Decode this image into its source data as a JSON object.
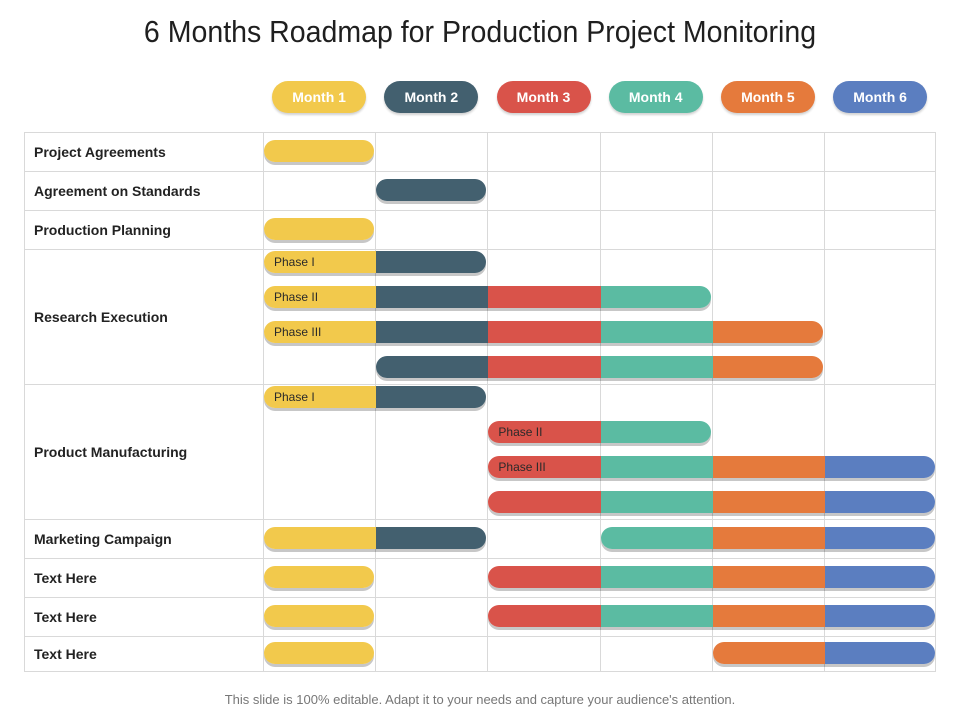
{
  "title": "6 Months Roadmap for Production Project Monitoring",
  "footer": "This slide is 100% editable. Adapt it to your needs and capture your audience's attention.",
  "colors": {
    "m1": "#f2c94c",
    "m2": "#43606f",
    "m3": "#d9534a",
    "m4": "#5bbba2",
    "m5": "#e57a3c",
    "m6": "#5b7ec0"
  },
  "months": [
    {
      "label": "Month 1",
      "color": "#f2c94c"
    },
    {
      "label": "Month 2",
      "color": "#43606f"
    },
    {
      "label": "Month 3",
      "color": "#d9534a"
    },
    {
      "label": "Month 4",
      "color": "#5bbba2"
    },
    {
      "label": "Month 5",
      "color": "#e57a3c"
    },
    {
      "label": "Month 6",
      "color": "#5b7ec0"
    }
  ],
  "rows": [
    {
      "label": "Project Agreements",
      "bars": [
        {
          "start": 1,
          "end": 1,
          "phase": ""
        }
      ]
    },
    {
      "label": "Agreement on Standards",
      "bars": [
        {
          "start": 2,
          "end": 2,
          "phase": ""
        }
      ]
    },
    {
      "label": "Production Planning",
      "bars": [
        {
          "start": 1,
          "end": 1,
          "phase": ""
        }
      ]
    },
    {
      "label": "Research Execution",
      "bars": [
        {
          "start": 1,
          "end": 2,
          "phase": "Phase I"
        },
        {
          "start": 1,
          "end": 4,
          "phase": "Phase II"
        },
        {
          "start": 1,
          "end": 5,
          "phase": "Phase III"
        },
        {
          "start": 2,
          "end": 5,
          "phase": ""
        }
      ]
    },
    {
      "label": "Product Manufacturing",
      "bars": [
        {
          "start": 1,
          "end": 2,
          "phase": "Phase I"
        },
        {
          "start": 3,
          "end": 4,
          "phase": "Phase II"
        },
        {
          "start": 3,
          "end": 6,
          "phase": "Phase III"
        },
        {
          "start": 3,
          "end": 6,
          "phase": ""
        }
      ]
    },
    {
      "label": "Marketing Campaign",
      "bars": [
        {
          "start": 1,
          "end": 2,
          "phase": ""
        },
        {
          "start": 4,
          "end": 6,
          "phase": ""
        }
      ]
    },
    {
      "label": "Text Here",
      "bars": [
        {
          "start": 1,
          "end": 1,
          "phase": ""
        },
        {
          "start": 3,
          "end": 6,
          "phase": ""
        }
      ]
    },
    {
      "label": "Text Here",
      "bars": [
        {
          "start": 1,
          "end": 1,
          "phase": ""
        },
        {
          "start": 3,
          "end": 6,
          "phase": ""
        }
      ]
    },
    {
      "label": "Text Here",
      "bars": [
        {
          "start": 1,
          "end": 1,
          "phase": ""
        },
        {
          "start": 5,
          "end": 6,
          "phase": ""
        }
      ]
    }
  ]
}
